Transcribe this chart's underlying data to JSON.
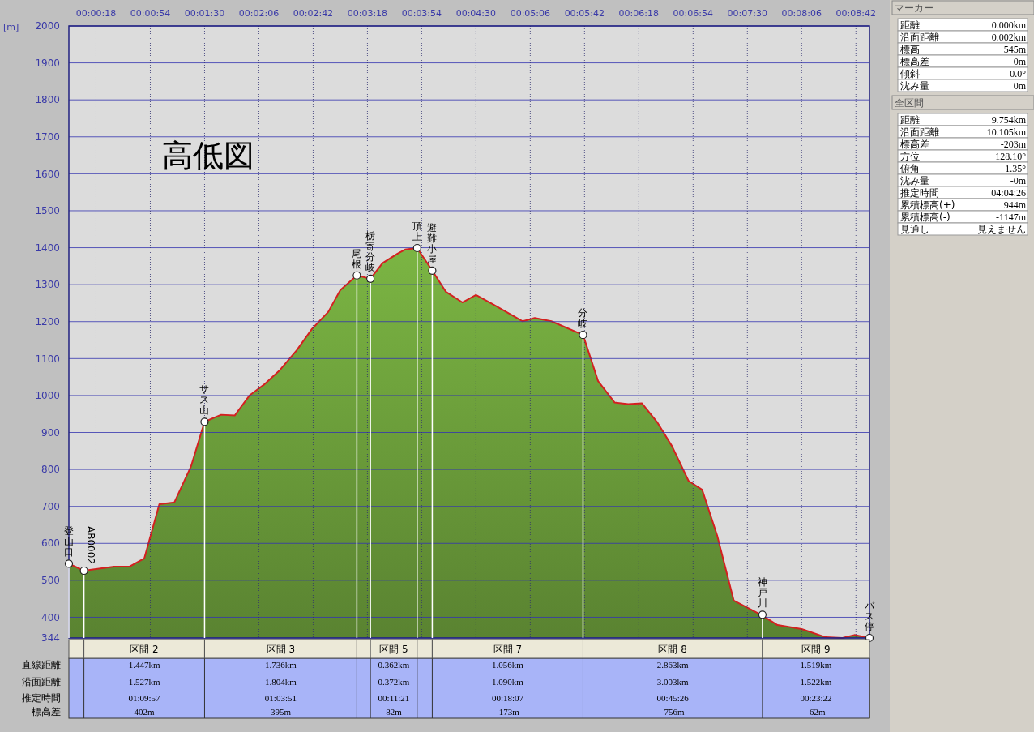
{
  "chart_data": [
    {
      "type": "area",
      "title": "高低図",
      "ylabel": "[m]",
      "grid": true,
      "x": [
        0,
        10,
        30,
        40,
        50,
        60,
        70,
        81,
        90,
        101,
        110,
        120,
        129,
        140,
        151,
        161,
        172,
        180,
        191,
        200,
        208,
        218,
        223,
        231,
        241,
        250,
        261,
        270,
        282,
        301,
        309,
        320,
        341,
        351,
        362,
        371,
        380,
        390,
        400,
        411,
        420,
        430,
        441,
        459,
        470,
        486,
        502,
        513,
        521,
        531
      ],
      "series": [
        {
          "color": "#6b9d3a",
          "values": [
            545,
            526,
            537,
            537,
            559,
            706,
            711,
            808,
            929,
            948,
            946,
            1001,
            1028,
            1069,
            1122,
            1179,
            1226,
            1285,
            1325,
            1316,
            1358,
            1384,
            1395,
            1399,
            1338,
            1281,
            1252,
            1272,
            1245,
            1201,
            1210,
            1201,
            1164,
            1039,
            981,
            977,
            979,
            929,
            863,
            769,
            745,
            621,
            445,
            407,
            379,
            368,
            346,
            344,
            352,
            344
          ]
        }
      ],
      "xlim": [
        0,
        531
      ],
      "xticks": [
        {
          "value": 18,
          "label": "00:00:18"
        },
        {
          "value": 54,
          "label": "00:00:54"
        },
        {
          "value": 90,
          "label": "00:01:30"
        },
        {
          "value": 126,
          "label": "00:02:06"
        },
        {
          "value": 162,
          "label": "00:02:42"
        },
        {
          "value": 198,
          "label": "00:03:18"
        },
        {
          "value": 234,
          "label": "00:03:54"
        },
        {
          "value": 270,
          "label": "00:04:30"
        },
        {
          "value": 306,
          "label": "00:05:06"
        },
        {
          "value": 342,
          "label": "00:05:42"
        },
        {
          "value": 378,
          "label": "00:06:18"
        },
        {
          "value": 414,
          "label": "00:06:54"
        },
        {
          "value": 450,
          "label": "00:07:30"
        },
        {
          "value": 486,
          "label": "00:08:06"
        },
        {
          "value": 522,
          "label": "00:08:42"
        }
      ],
      "ylim": [
        344,
        2000
      ],
      "yticks": [
        344,
        400,
        500,
        600,
        700,
        800,
        900,
        1000,
        1100,
        1200,
        1300,
        1400,
        1500,
        1600,
        1700,
        1800,
        1900,
        2000
      ],
      "annotations": [
        {
          "text": "登山口",
          "x": 0,
          "y": 545
        },
        {
          "text": "AB0002",
          "x": 10,
          "y": 526
        },
        {
          "text": "サス山",
          "x": 90,
          "y": 929
        },
        {
          "text": "尾根",
          "x": 191,
          "y": 1325
        },
        {
          "text": "栃寄分岐",
          "x": 200,
          "y": 1316
        },
        {
          "text": "頂上",
          "x": 231,
          "y": 1399
        },
        {
          "text": "避難小屋",
          "x": 241,
          "y": 1338
        },
        {
          "text": "分岐",
          "x": 341,
          "y": 1164
        },
        {
          "text": "神戸川",
          "x": 460,
          "y": 407
        },
        {
          "text": "バス停",
          "x": 531,
          "y": 344
        }
      ]
    },
    {
      "type": "other",
      "categories": [
        null,
        "区間 2",
        "区間 3",
        null,
        "区間 5",
        null,
        "区間 7",
        "区間 8",
        "区間 9"
      ],
      "y_categories": [
        "直線距離",
        "沿面距離",
        "推定時間",
        "標高差"
      ],
      "cell_labels": [
        [
          null,
          "1.447km",
          "1.736km",
          null,
          "0.362km",
          null,
          "1.056km",
          "2.863km",
          "1.519km"
        ],
        [
          null,
          "1.527km",
          "1.804km",
          null,
          "0.372km",
          null,
          "1.090km",
          "3.003km",
          "1.522km"
        ],
        [
          null,
          "01:09:57",
          "01:03:51",
          null,
          "00:11:21",
          null,
          "00:18:07",
          "00:45:26",
          "00:23:22"
        ],
        [
          null,
          "402m",
          "395m",
          null,
          "82m",
          null,
          "-173m",
          "-756m",
          "-62m"
        ]
      ]
    },
    {
      "type": "other",
      "title": "マーカー",
      "y_categories": [
        "距離",
        "沿面距離",
        "標高",
        "標高差",
        "傾斜",
        "沈み量"
      ],
      "cell_labels": [
        [
          "0.000km"
        ],
        [
          "0.002km"
        ],
        [
          "545m"
        ],
        [
          "0m"
        ],
        [
          "0.0°"
        ],
        [
          "0m"
        ]
      ]
    },
    {
      "type": "other",
      "title": "全区間",
      "y_categories": [
        "距離",
        "沿面距離",
        "標高差",
        "方位",
        "俯角",
        "沈み量",
        "推定時間",
        "累積標高(+)",
        "累積標高(-)",
        "見通し"
      ],
      "cell_labels": [
        [
          "9.754km"
        ],
        [
          "10.105km"
        ],
        [
          "-203m"
        ],
        [
          "128.10°"
        ],
        [
          "-1.35°"
        ],
        [
          "-0m"
        ],
        [
          "04:04:26"
        ],
        [
          "944m"
        ],
        [
          "-1147m"
        ],
        [
          "見えません"
        ]
      ]
    }
  ]
}
